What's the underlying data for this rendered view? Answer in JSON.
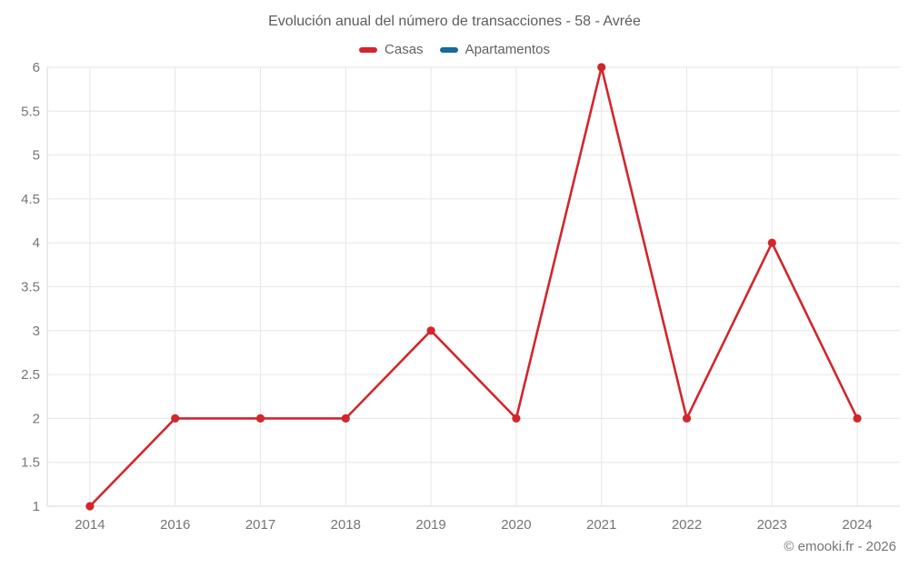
{
  "header": {
    "title": "Evolución anual del número de transacciones - 58 - Avrée"
  },
  "footer": {
    "copyright": "© emooki.fr - 2026"
  },
  "chart_data": {
    "type": "line",
    "title": "Evolución anual del número de transacciones - 58 - Avrée",
    "categories": [
      "2014",
      "2016",
      "2017",
      "2018",
      "2019",
      "2020",
      "2021",
      "2022",
      "2023",
      "2024"
    ],
    "series": [
      {
        "name": "Casas",
        "color": "#d2262c",
        "values": [
          1,
          2,
          2,
          2,
          3,
          2,
          6,
          2,
          4,
          2
        ]
      },
      {
        "name": "Apartamentos",
        "color": "#17699e",
        "values": []
      }
    ],
    "xlabel": "",
    "ylabel": "",
    "ylim": [
      1,
      6
    ],
    "ytick_step": 0.5,
    "grid": true,
    "legend_position": "top",
    "colors": {
      "gridline": "#e6e6e6",
      "axis_line": "#d9d9d9",
      "tick_label": "#757575"
    }
  }
}
